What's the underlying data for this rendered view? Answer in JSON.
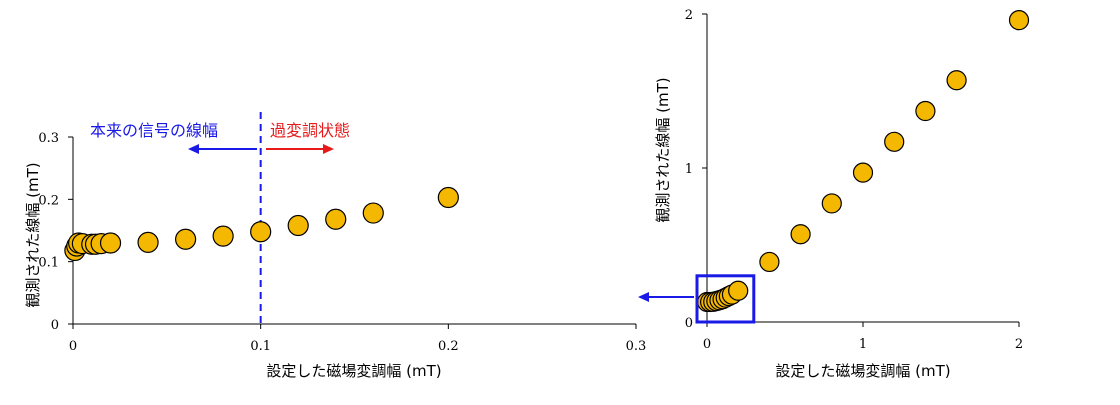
{
  "chart_data": [
    {
      "type": "scatter",
      "xlabel": "設定した磁場変調幅 (mT)",
      "ylabel": "観測された線幅 (mT)",
      "xlim": [
        0,
        0.3
      ],
      "ylim": [
        0,
        0.3
      ],
      "xticks": [
        "0",
        "0.1",
        "0.2",
        "0.3"
      ],
      "yticks": [
        "0",
        "0.1",
        "0.2",
        "0.3"
      ],
      "marker_color": "#F5B800",
      "series": [
        {
          "x": [
            0.001,
            0.002,
            0.003,
            0.005,
            0.01,
            0.012,
            0.015,
            0.02,
            0.04,
            0.06,
            0.08,
            0.1,
            0.12,
            0.14,
            0.16,
            0.2
          ],
          "y": [
            0.118,
            0.125,
            0.13,
            0.129,
            0.128,
            0.128,
            0.129,
            0.13,
            0.131,
            0.136,
            0.141,
            0.148,
            0.158,
            0.168,
            0.178,
            0.203
          ]
        }
      ],
      "vline": {
        "x": 0.1,
        "color": "#1A1AE6",
        "style": "dashed"
      },
      "annotations": {
        "left_text": "本来の信号の線幅",
        "left_color": "#1A1AE6",
        "right_text": "過変調状態",
        "right_color": "#E61A1A"
      }
    },
    {
      "type": "scatter",
      "xlabel": "設定した磁場変調幅 (mT)",
      "ylabel": "観測された線幅 (mT)",
      "xlim": [
        0,
        2
      ],
      "ylim": [
        0,
        2
      ],
      "xticks": [
        "0",
        "1",
        "2"
      ],
      "yticks": [
        "0",
        "1",
        "2"
      ],
      "marker_color": "#F5B800",
      "series": [
        {
          "x": [
            0.001,
            0.02,
            0.04,
            0.06,
            0.08,
            0.1,
            0.12,
            0.14,
            0.16,
            0.2,
            0.4,
            0.6,
            0.8,
            1.0,
            1.2,
            1.4,
            1.6,
            2.0
          ],
          "y": [
            0.13,
            0.13,
            0.131,
            0.136,
            0.141,
            0.148,
            0.158,
            0.168,
            0.178,
            0.203,
            0.39,
            0.57,
            0.77,
            0.97,
            1.17,
            1.37,
            1.57,
            1.96
          ]
        }
      ],
      "zoom_box": {
        "x": [
          0,
          0.3
        ],
        "y": [
          0,
          0.3
        ],
        "color": "#1A1AE6"
      },
      "arrow_color": "#1A1AE6"
    }
  ]
}
